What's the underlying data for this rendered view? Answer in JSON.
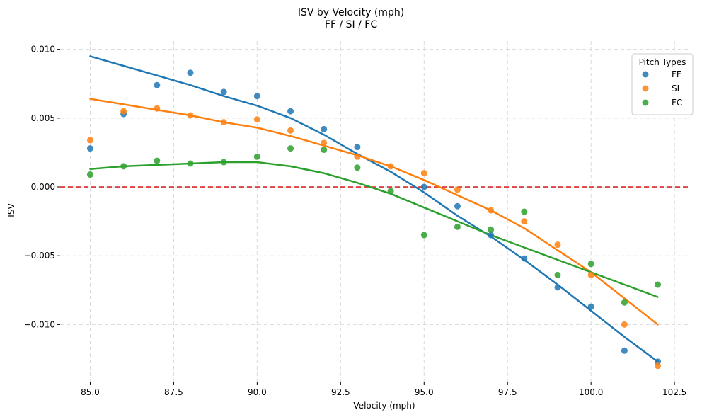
{
  "chart_data": {
    "type": "scatter",
    "title": "ISV by Velocity (mph)",
    "subtitle": "FF / SI / FC",
    "xlabel": "Velocity (mph)",
    "ylabel": "ISV",
    "xlim": [
      84.1,
      102.9
    ],
    "ylim": [
      -0.0142,
      0.0106
    ],
    "x_ticks": [
      85.0,
      87.5,
      90.0,
      92.5,
      95.0,
      97.5,
      100.0,
      102.5
    ],
    "x_tick_labels": [
      "85.0",
      "87.5",
      "90.0",
      "92.5",
      "95.0",
      "97.5",
      "100.0",
      "102.5"
    ],
    "y_ticks": [
      0.01,
      0.005,
      0.0,
      -0.005,
      -0.01
    ],
    "y_tick_labels": [
      "0.010",
      "0.005",
      "0.000",
      "−0.005",
      "−0.010"
    ],
    "grid": true,
    "reference_line": {
      "y": 0.0,
      "color": "#d62728",
      "style": "dashed"
    },
    "legend": {
      "title": "Pitch Types",
      "placement": "top-right"
    },
    "series": [
      {
        "name": "FF",
        "color": "#1f77b4",
        "x": [
          85,
          86,
          87,
          88,
          89,
          90,
          91,
          92,
          93,
          95,
          96,
          97,
          98,
          99,
          100,
          101,
          102
        ],
        "y": [
          0.0028,
          0.0053,
          0.0074,
          0.0083,
          0.0069,
          0.0066,
          0.0055,
          0.0042,
          0.0029,
          0.0,
          -0.0014,
          -0.0035,
          -0.0052,
          -0.0073,
          -0.0087,
          -0.0119,
          -0.0127
        ],
        "fit_x": [
          85,
          86,
          87,
          88,
          89,
          90,
          91,
          92,
          93,
          94,
          95,
          96,
          97,
          98,
          99,
          100,
          101,
          102
        ],
        "fit_y": [
          0.0095,
          0.0088,
          0.0081,
          0.0074,
          0.0066,
          0.0059,
          0.005,
          0.0038,
          0.0024,
          0.0011,
          -0.0004,
          -0.0021,
          -0.0036,
          -0.0053,
          -0.0071,
          -0.009,
          -0.0109,
          -0.0127
        ]
      },
      {
        "name": "SI",
        "color": "#ff7f0e",
        "x": [
          85,
          86,
          87,
          88,
          89,
          90,
          91,
          92,
          93,
          94,
          95,
          96,
          97,
          98,
          99,
          100,
          101,
          102
        ],
        "y": [
          0.0034,
          0.0055,
          0.0057,
          0.0052,
          0.0047,
          0.0049,
          0.0041,
          0.0032,
          0.0022,
          0.0015,
          0.001,
          -0.0002,
          -0.0017,
          -0.0025,
          -0.0042,
          -0.0064,
          -0.01,
          -0.013
        ],
        "fit_x": [
          85,
          86,
          87,
          88,
          89,
          90,
          91,
          92,
          93,
          94,
          95,
          96,
          97,
          98,
          99,
          100,
          101,
          102
        ],
        "fit_y": [
          0.0064,
          0.006,
          0.0056,
          0.0052,
          0.0047,
          0.0043,
          0.0037,
          0.003,
          0.0023,
          0.0015,
          0.0005,
          -0.0006,
          -0.0017,
          -0.003,
          -0.0046,
          -0.0062,
          -0.0081,
          -0.01
        ]
      },
      {
        "name": "FC",
        "color": "#2ca02c",
        "x": [
          85,
          86,
          87,
          88,
          89,
          90,
          91,
          92,
          93,
          94,
          95,
          96,
          97,
          98,
          99,
          100,
          101,
          102
        ],
        "y": [
          0.0009,
          0.0015,
          0.0019,
          0.0017,
          0.0018,
          0.0022,
          0.0028,
          0.0027,
          0.0014,
          -0.0003,
          -0.0035,
          -0.0029,
          -0.0031,
          -0.0018,
          -0.0064,
          -0.0056,
          -0.0084,
          -0.0071
        ],
        "fit_x": [
          85,
          86,
          87,
          88,
          89,
          90,
          91,
          92,
          93,
          94,
          95,
          96,
          97,
          98,
          99,
          100,
          101,
          102
        ],
        "fit_y": [
          0.0013,
          0.0015,
          0.0016,
          0.0017,
          0.0018,
          0.0018,
          0.0015,
          0.001,
          0.0003,
          -0.0005,
          -0.0015,
          -0.0025,
          -0.0035,
          -0.0044,
          -0.0053,
          -0.0062,
          -0.0071,
          -0.008
        ]
      }
    ]
  }
}
